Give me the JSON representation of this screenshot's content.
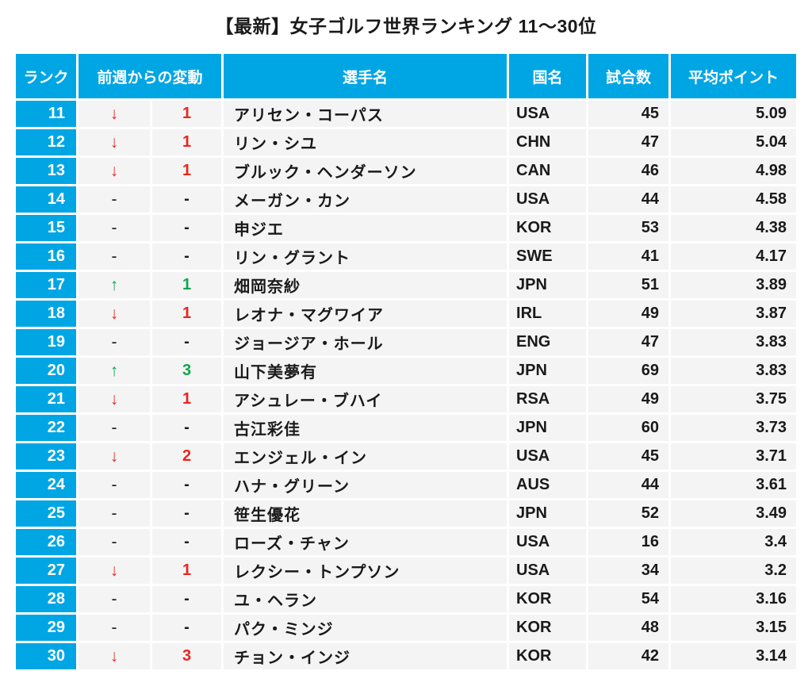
{
  "title": "【最新】女子ゴルフ世界ランキング 11〜30位",
  "colors": {
    "accent": "#00a6e4",
    "down_red": "#e8261f",
    "up_green": "#0fa64c",
    "cell_background": "#f4f4f4",
    "text": "#1a1a1a"
  },
  "chart_data": {
    "type": "table",
    "title": "【最新】女子ゴルフ世界ランキング 11〜30位",
    "columns": {
      "rank": "ランク",
      "change": "前週からの変動",
      "name": "選手名",
      "country": "国名",
      "events": "試合数",
      "avg_points": "平均ポイント"
    },
    "change_symbols": {
      "down": "↓",
      "up": "↑",
      "none": "-"
    },
    "rows": [
      {
        "rank": "11",
        "change_dir": "down",
        "change_symbol": "↓",
        "change_value": "1",
        "name": "アリセン・コーパス",
        "country": "USA",
        "events": "45",
        "avg_points": "5.09"
      },
      {
        "rank": "12",
        "change_dir": "down",
        "change_symbol": "↓",
        "change_value": "1",
        "name": "リン・シユ",
        "country": "CHN",
        "events": "47",
        "avg_points": "5.04"
      },
      {
        "rank": "13",
        "change_dir": "down",
        "change_symbol": "↓",
        "change_value": "1",
        "name": "ブルック・ヘンダーソン",
        "country": "CAN",
        "events": "46",
        "avg_points": "4.98"
      },
      {
        "rank": "14",
        "change_dir": "none",
        "change_symbol": "-",
        "change_value": "-",
        "name": "メーガン・カン",
        "country": "USA",
        "events": "44",
        "avg_points": "4.58"
      },
      {
        "rank": "15",
        "change_dir": "none",
        "change_symbol": "-",
        "change_value": "-",
        "name": "申ジエ",
        "country": "KOR",
        "events": "53",
        "avg_points": "4.38"
      },
      {
        "rank": "16",
        "change_dir": "none",
        "change_symbol": "-",
        "change_value": "-",
        "name": "リン・グラント",
        "country": "SWE",
        "events": "41",
        "avg_points": "4.17"
      },
      {
        "rank": "17",
        "change_dir": "up",
        "change_symbol": "↑",
        "change_value": "1",
        "name": "畑岡奈紗",
        "country": "JPN",
        "events": "51",
        "avg_points": "3.89"
      },
      {
        "rank": "18",
        "change_dir": "down",
        "change_symbol": "↓",
        "change_value": "1",
        "name": "レオナ・マグワイア",
        "country": "IRL",
        "events": "49",
        "avg_points": "3.87"
      },
      {
        "rank": "19",
        "change_dir": "none",
        "change_symbol": "-",
        "change_value": "-",
        "name": "ジョージア・ホール",
        "country": "ENG",
        "events": "47",
        "avg_points": "3.83"
      },
      {
        "rank": "20",
        "change_dir": "up",
        "change_symbol": "↑",
        "change_value": "3",
        "name": "山下美夢有",
        "country": "JPN",
        "events": "69",
        "avg_points": "3.83"
      },
      {
        "rank": "21",
        "change_dir": "down",
        "change_symbol": "↓",
        "change_value": "1",
        "name": "アシュレー・ブハイ",
        "country": "RSA",
        "events": "49",
        "avg_points": "3.75"
      },
      {
        "rank": "22",
        "change_dir": "none",
        "change_symbol": "-",
        "change_value": "-",
        "name": "古江彩佳",
        "country": "JPN",
        "events": "60",
        "avg_points": "3.73"
      },
      {
        "rank": "23",
        "change_dir": "down",
        "change_symbol": "↓",
        "change_value": "2",
        "name": "エンジェル・イン",
        "country": "USA",
        "events": "45",
        "avg_points": "3.71"
      },
      {
        "rank": "24",
        "change_dir": "none",
        "change_symbol": "-",
        "change_value": "-",
        "name": "ハナ・グリーン",
        "country": "AUS",
        "events": "44",
        "avg_points": "3.61"
      },
      {
        "rank": "25",
        "change_dir": "none",
        "change_symbol": "-",
        "change_value": "-",
        "name": "笹生優花",
        "country": "JPN",
        "events": "52",
        "avg_points": "3.49"
      },
      {
        "rank": "26",
        "change_dir": "none",
        "change_symbol": "-",
        "change_value": "-",
        "name": "ローズ・チャン",
        "country": "USA",
        "events": "16",
        "avg_points": "3.4"
      },
      {
        "rank": "27",
        "change_dir": "down",
        "change_symbol": "↓",
        "change_value": "1",
        "name": "レクシー・トンプソン",
        "country": "USA",
        "events": "34",
        "avg_points": "3.2"
      },
      {
        "rank": "28",
        "change_dir": "none",
        "change_symbol": "-",
        "change_value": "-",
        "name": "ユ・ヘラン",
        "country": "KOR",
        "events": "54",
        "avg_points": "3.16"
      },
      {
        "rank": "29",
        "change_dir": "none",
        "change_symbol": "-",
        "change_value": "-",
        "name": "パク・ミンジ",
        "country": "KOR",
        "events": "48",
        "avg_points": "3.15"
      },
      {
        "rank": "30",
        "change_dir": "down",
        "change_symbol": "↓",
        "change_value": "3",
        "name": "チョン・インジ",
        "country": "KOR",
        "events": "42",
        "avg_points": "3.14"
      }
    ]
  }
}
